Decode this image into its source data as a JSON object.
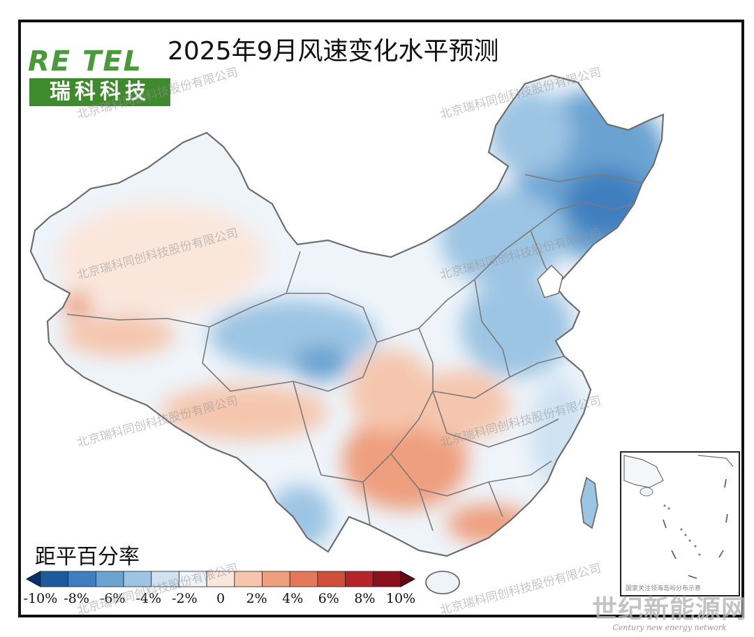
{
  "title": "2025年9月风速变化水平预测",
  "logo": {
    "wordmark": "RE TEL",
    "name_cn": "瑞科科技"
  },
  "legend": {
    "title": "距平百分率",
    "labels": [
      "-10%",
      "-8%",
      "-6%",
      "-4%",
      "-2%",
      "0",
      "2%",
      "4%",
      "6%",
      "8%",
      "10%"
    ],
    "colors": [
      "#08306b",
      "#1c5a9c",
      "#3f7fbf",
      "#6ba3d1",
      "#9cc4e3",
      "#cfe2f1",
      "#eef4fa",
      "#fbe6dc",
      "#f5c6ad",
      "#ee9f7e",
      "#e3785a",
      "#cf4f3a",
      "#b42428",
      "#8c0f1c",
      "#5e0914"
    ]
  },
  "inset_caption": "国家关注领海岛屿分布示意",
  "watermark": "北京瑞科同创科技股份有限公司",
  "footer": {
    "cn": "世纪新能源网",
    "en": "Century new energy network"
  },
  "map_style": {
    "border_color": "#6e6e6e",
    "anomaly_positive": "#ee9f7e",
    "anomaly_negative": "#6ba3d1"
  }
}
